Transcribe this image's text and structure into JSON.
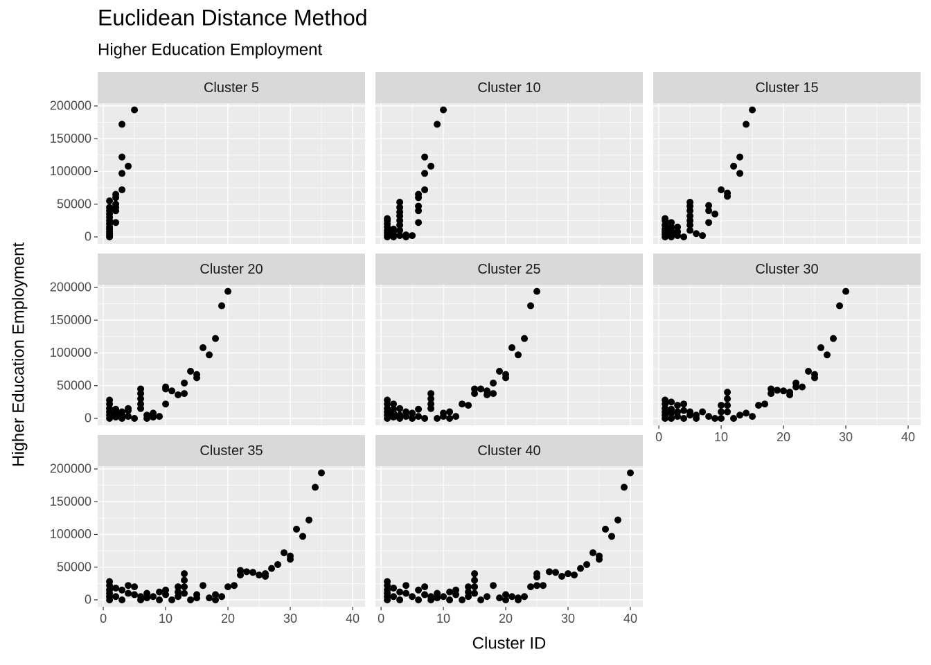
{
  "title": "Euclidean Distance Method",
  "subtitle": "Higher Education Employment",
  "x_label": "Cluster ID",
  "y_label": "Higher Education Employment",
  "chart_data": [
    {
      "type": "scatter",
      "title": "Cluster 5",
      "color": "#000000",
      "grid": true,
      "xlim": [
        -0.9,
        42
      ],
      "ylim": [
        -10600,
        204200
      ],
      "xticks": [
        0,
        10,
        20,
        30,
        40
      ],
      "yticks": [
        0,
        50000,
        100000,
        150000,
        200000
      ],
      "x": [
        1,
        1,
        1,
        1,
        1,
        1,
        1,
        1,
        1,
        1,
        1,
        1,
        1,
        2,
        2,
        2,
        2,
        2,
        2,
        3,
        3,
        3,
        3,
        4,
        5
      ],
      "values": [
        0,
        2000,
        5000,
        8000,
        12000,
        15000,
        20000,
        25000,
        30000,
        35000,
        40000,
        45000,
        55000,
        22000,
        40000,
        45000,
        50000,
        60000,
        65000,
        72000,
        97000,
        122000,
        172000,
        108000,
        194000
      ]
    },
    {
      "type": "scatter",
      "title": "Cluster 10",
      "color": "#000000",
      "grid": true,
      "xlim": [
        -0.9,
        42
      ],
      "ylim": [
        -10600,
        204200
      ],
      "xticks": [
        0,
        10,
        20,
        30,
        40
      ],
      "yticks": [
        0,
        50000,
        100000,
        150000,
        200000
      ],
      "x": [
        1,
        1,
        1,
        1,
        1,
        1,
        1,
        1,
        2,
        2,
        2,
        2,
        3,
        3,
        3,
        3,
        3,
        3,
        3,
        3,
        4,
        4,
        5,
        6,
        6,
        6,
        6,
        6,
        7,
        7,
        7,
        8,
        9,
        10
      ],
      "values": [
        0,
        3000,
        6000,
        10000,
        15000,
        20000,
        25000,
        28000,
        0,
        3000,
        8000,
        12000,
        2000,
        10000,
        18000,
        25000,
        32000,
        38000,
        45000,
        53000,
        0,
        3000,
        2000,
        22000,
        40000,
        47000,
        60000,
        65000,
        72000,
        97000,
        122000,
        108000,
        172000,
        194000
      ]
    },
    {
      "type": "scatter",
      "title": "Cluster 15",
      "color": "#000000",
      "grid": true,
      "xlim": [
        -0.9,
        42
      ],
      "ylim": [
        -10600,
        204200
      ],
      "xticks": [
        0,
        10,
        20,
        30,
        40
      ],
      "yticks": [
        0,
        50000,
        100000,
        150000,
        200000
      ],
      "x": [
        1,
        1,
        1,
        1,
        1,
        1,
        1,
        2,
        2,
        2,
        2,
        2,
        3,
        3,
        3,
        4,
        5,
        5,
        5,
        5,
        5,
        5,
        5,
        6,
        7,
        8,
        8,
        8,
        9,
        10,
        11,
        11,
        12,
        13,
        13,
        14,
        15
      ],
      "values": [
        0,
        4000,
        8000,
        12000,
        18000,
        25000,
        28000,
        0,
        5000,
        10000,
        15000,
        22000,
        2000,
        8000,
        15000,
        0,
        10000,
        18000,
        25000,
        32000,
        40000,
        47000,
        53000,
        5000,
        2000,
        22000,
        40000,
        48000,
        35000,
        72000,
        62000,
        67000,
        108000,
        97000,
        122000,
        172000,
        194000
      ]
    },
    {
      "type": "scatter",
      "title": "Cluster 20",
      "color": "#000000",
      "grid": true,
      "xlim": [
        -0.9,
        42
      ],
      "ylim": [
        -10600,
        204200
      ],
      "xticks": [
        0,
        10,
        20,
        30,
        40
      ],
      "yticks": [
        0,
        50000,
        100000,
        150000,
        200000
      ],
      "x": [
        1,
        1,
        1,
        1,
        1,
        1,
        2,
        2,
        2,
        3,
        3,
        3,
        4,
        4,
        4,
        5,
        6,
        6,
        6,
        6,
        6,
        7,
        7,
        8,
        8,
        9,
        10,
        10,
        10,
        11,
        12,
        13,
        13,
        14,
        15,
        15,
        16,
        17,
        18,
        19,
        20
      ],
      "values": [
        0,
        5000,
        10000,
        15000,
        22000,
        28000,
        2000,
        8000,
        14000,
        0,
        5000,
        10000,
        3000,
        12000,
        15000,
        0,
        15000,
        22000,
        30000,
        38000,
        45000,
        0,
        5000,
        2000,
        8000,
        3000,
        22000,
        45000,
        48000,
        42000,
        36000,
        38000,
        54000,
        72000,
        62000,
        67000,
        108000,
        97000,
        122000,
        172000,
        194000
      ]
    },
    {
      "type": "scatter",
      "title": "Cluster 25",
      "color": "#000000",
      "grid": true,
      "xlim": [
        -0.9,
        42
      ],
      "ylim": [
        -10600,
        204200
      ],
      "xticks": [
        0,
        10,
        20,
        30,
        40
      ],
      "yticks": [
        0,
        50000,
        100000,
        150000,
        200000
      ],
      "x": [
        1,
        1,
        1,
        1,
        1,
        1,
        2,
        2,
        2,
        2,
        3,
        3,
        3,
        4,
        4,
        5,
        5,
        6,
        6,
        7,
        8,
        8,
        8,
        8,
        9,
        10,
        10,
        11,
        11,
        12,
        13,
        14,
        15,
        15,
        16,
        17,
        17,
        18,
        18,
        19,
        20,
        20,
        21,
        22,
        23,
        24,
        25
      ],
      "values": [
        0,
        5000,
        10000,
        15000,
        22000,
        28000,
        2000,
        8000,
        14000,
        22000,
        0,
        5000,
        15000,
        3000,
        10000,
        0,
        8000,
        3000,
        14000,
        0,
        15000,
        22000,
        30000,
        38000,
        0,
        3000,
        8000,
        0,
        10000,
        3000,
        22000,
        20000,
        38000,
        45000,
        45000,
        36000,
        42000,
        38000,
        54000,
        72000,
        62000,
        67000,
        108000,
        97000,
        122000,
        172000,
        194000
      ]
    },
    {
      "type": "scatter",
      "title": "Cluster 30",
      "color": "#000000",
      "grid": true,
      "xlim": [
        -0.9,
        42
      ],
      "ylim": [
        -10600,
        204200
      ],
      "xticks": [
        0,
        10,
        20,
        30,
        40
      ],
      "yticks": [
        0,
        50000,
        100000,
        150000,
        200000
      ],
      "x": [
        1,
        1,
        1,
        1,
        1,
        1,
        2,
        2,
        2,
        2,
        3,
        3,
        3,
        4,
        4,
        4,
        5,
        5,
        6,
        6,
        7,
        8,
        9,
        10,
        10,
        10,
        11,
        11,
        11,
        11,
        12,
        13,
        14,
        15,
        16,
        17,
        18,
        18,
        19,
        20,
        21,
        21,
        22,
        22,
        23,
        24,
        25,
        25,
        26,
        27,
        28,
        29,
        30
      ],
      "values": [
        0,
        5000,
        10000,
        15000,
        22000,
        28000,
        0,
        8000,
        14000,
        25000,
        3000,
        10000,
        20000,
        0,
        12000,
        22000,
        5000,
        10000,
        0,
        5000,
        10000,
        3000,
        0,
        0,
        10000,
        20000,
        10000,
        20000,
        30000,
        40000,
        0,
        5000,
        8000,
        3000,
        20000,
        22000,
        38000,
        45000,
        43000,
        42000,
        36000,
        40000,
        48000,
        54000,
        48000,
        72000,
        62000,
        67000,
        108000,
        97000,
        122000,
        172000,
        194000
      ]
    },
    {
      "type": "scatter",
      "title": "Cluster 35",
      "color": "#000000",
      "grid": true,
      "xlim": [
        -0.9,
        42
      ],
      "ylim": [
        -10600,
        204200
      ],
      "xticks": [
        0,
        10,
        20,
        30,
        40
      ],
      "yticks": [
        0,
        50000,
        100000,
        150000,
        200000
      ],
      "x": [
        1,
        1,
        1,
        1,
        1,
        1,
        2,
        2,
        3,
        3,
        4,
        4,
        5,
        5,
        6,
        6,
        7,
        7,
        8,
        9,
        9,
        10,
        10,
        11,
        12,
        12,
        12,
        13,
        13,
        13,
        13,
        14,
        15,
        15,
        16,
        17,
        18,
        18,
        19,
        20,
        21,
        22,
        22,
        23,
        24,
        25,
        26,
        26,
        27,
        28,
        29,
        30,
        30,
        31,
        32,
        33,
        34,
        35
      ],
      "values": [
        0,
        5000,
        10000,
        15000,
        22000,
        28000,
        5000,
        18000,
        0,
        15000,
        10000,
        22000,
        8000,
        20000,
        0,
        5000,
        3000,
        10000,
        5000,
        0,
        12000,
        8000,
        15000,
        0,
        5000,
        12000,
        20000,
        10000,
        20000,
        30000,
        40000,
        0,
        3000,
        8000,
        22000,
        3000,
        0,
        8000,
        5000,
        20000,
        22000,
        38000,
        45000,
        43000,
        42000,
        38000,
        36000,
        40000,
        48000,
        54000,
        72000,
        62000,
        67000,
        108000,
        97000,
        122000,
        172000,
        194000
      ]
    },
    {
      "type": "scatter",
      "title": "Cluster 40",
      "color": "#000000",
      "grid": true,
      "xlim": [
        -0.9,
        42
      ],
      "ylim": [
        -10600,
        204200
      ],
      "xticks": [
        0,
        10,
        20,
        30,
        40
      ],
      "yticks": [
        0,
        50000,
        100000,
        150000,
        200000
      ],
      "x": [
        1,
        1,
        1,
        1,
        1,
        1,
        2,
        2,
        3,
        3,
        4,
        4,
        5,
        6,
        6,
        7,
        7,
        8,
        8,
        9,
        9,
        10,
        11,
        11,
        12,
        12,
        13,
        14,
        14,
        14,
        15,
        15,
        15,
        15,
        16,
        17,
        18,
        19,
        20,
        20,
        21,
        22,
        22,
        23,
        24,
        25,
        25,
        25,
        26,
        27,
        28,
        29,
        30,
        31,
        32,
        33,
        34,
        35,
        35,
        36,
        37,
        38,
        39,
        40
      ],
      "values": [
        0,
        5000,
        10000,
        15000,
        22000,
        28000,
        5000,
        18000,
        0,
        12000,
        10000,
        22000,
        5000,
        0,
        15000,
        8000,
        20000,
        0,
        5000,
        3000,
        10000,
        5000,
        0,
        12000,
        8000,
        15000,
        0,
        5000,
        12000,
        20000,
        10000,
        20000,
        30000,
        40000,
        0,
        5000,
        22000,
        3000,
        0,
        8000,
        5000,
        0,
        3000,
        5000,
        20000,
        22000,
        35000,
        40000,
        22000,
        43000,
        42000,
        36000,
        40000,
        38000,
        48000,
        54000,
        72000,
        62000,
        67000,
        108000,
        97000,
        122000,
        172000,
        194000
      ]
    }
  ]
}
